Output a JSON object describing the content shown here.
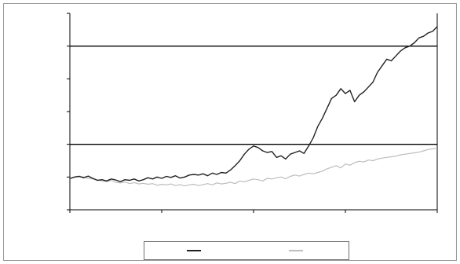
{
  "chart_data": {
    "type": "line",
    "title": "",
    "xlabel": "",
    "ylabel": "",
    "ylim": [
      -100,
      500
    ],
    "yticks": [
      -100,
      0,
      100,
      200,
      300,
      400,
      500
    ],
    "ytick_labels": [
      "",
      "",
      "",
      "",
      "",
      "",
      ""
    ],
    "xtick_labels": [
      "",
      "",
      "",
      "",
      ""
    ],
    "reference_lines": [
      100,
      400
    ],
    "grid": false,
    "legend_position": "bottom",
    "x": [
      0,
      3,
      6,
      9,
      12,
      15,
      18,
      21,
      24,
      27,
      30,
      33,
      36,
      39,
      42,
      45,
      48,
      51,
      54,
      57,
      60,
      63,
      66,
      69,
      72,
      75,
      78,
      81,
      84,
      87,
      90,
      93,
      96,
      99,
      102,
      105,
      108,
      111,
      114,
      117,
      120,
      123,
      126,
      129,
      132,
      135,
      138,
      141,
      144,
      147,
      150,
      153,
      156,
      159,
      162,
      165,
      168,
      171,
      174,
      177,
      180,
      183,
      186,
      189,
      192,
      195,
      198,
      201,
      204,
      207,
      210,
      213,
      216,
      219,
      222,
      225,
      228,
      231,
      234,
      237,
      240
    ],
    "series": [
      {
        "name": "",
        "color": "#222222",
        "values": [
          -5,
          0,
          2,
          -2,
          3,
          -4,
          -10,
          -8,
          -12,
          -6,
          -9,
          -14,
          -8,
          -10,
          -6,
          -12,
          -8,
          -2,
          -6,
          0,
          -4,
          2,
          -1,
          4,
          -3,
          0,
          6,
          8,
          6,
          10,
          4,
          12,
          8,
          14,
          12,
          22,
          35,
          50,
          70,
          85,
          95,
          90,
          80,
          75,
          78,
          60,
          65,
          55,
          70,
          75,
          80,
          72,
          95,
          120,
          155,
          180,
          210,
          240,
          250,
          270,
          255,
          265,
          230,
          250,
          260,
          275,
          290,
          320,
          340,
          360,
          355,
          370,
          385,
          395,
          400,
          410,
          425,
          430,
          440,
          445,
          460
        ]
      },
      {
        "name": "",
        "color": "#bdbdbd",
        "values": [
          -2,
          -1,
          3,
          0,
          -4,
          -6,
          -9,
          -12,
          -14,
          -10,
          -16,
          -18,
          -15,
          -20,
          -17,
          -21,
          -19,
          -22,
          -20,
          -25,
          -22,
          -24,
          -21,
          -26,
          -23,
          -27,
          -24,
          -22,
          -26,
          -23,
          -20,
          -24,
          -18,
          -21,
          -19,
          -16,
          -20,
          -12,
          -15,
          -10,
          -6,
          -8,
          -12,
          -4,
          -6,
          -2,
          0,
          -5,
          2,
          6,
          3,
          8,
          12,
          10,
          14,
          18,
          25,
          30,
          35,
          28,
          40,
          36,
          44,
          48,
          46,
          52,
          50,
          55,
          58,
          60,
          62,
          64,
          68,
          70,
          72,
          74,
          76,
          80,
          84,
          86,
          88
        ]
      }
    ]
  }
}
